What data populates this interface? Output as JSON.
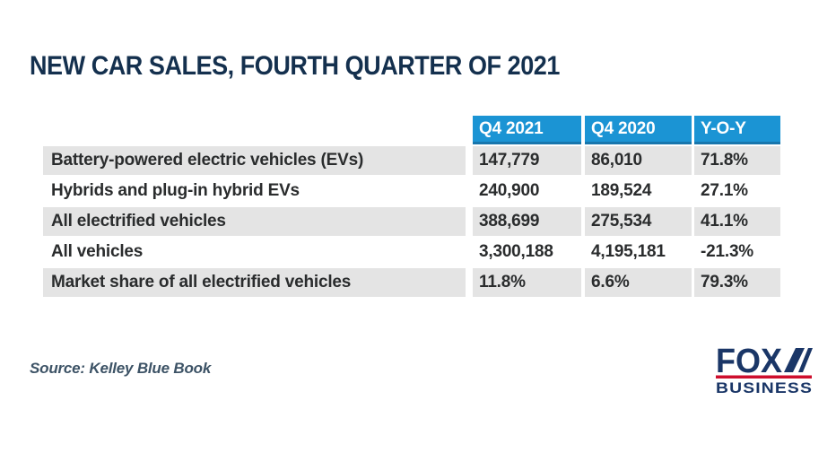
{
  "title": "NEW CAR SALES, FOURTH QUARTER OF 2021",
  "table": {
    "columns": [
      "Q4 2021",
      "Q4 2020",
      "Y-O-Y"
    ],
    "rows": [
      {
        "label": "Battery-powered electric vehicles (EVs)",
        "values": [
          "147,779",
          "86,010",
          "71.8%"
        ]
      },
      {
        "label": "Hybrids and plug-in hybrid EVs",
        "values": [
          "240,900",
          "189,524",
          "27.1%"
        ]
      },
      {
        "label": "All electrified vehicles",
        "values": [
          "388,699",
          "275,534",
          "41.1%"
        ]
      },
      {
        "label": "All vehicles",
        "values": [
          "3,300,188",
          "4,195,181",
          "-21.3%"
        ]
      },
      {
        "label": "Market share of all electrified vehicles",
        "values": [
          "11.8%",
          "6.6%",
          "79.3%"
        ]
      }
    ]
  },
  "source": "Source: Kelley Blue Book",
  "logo": {
    "brand": "FOX",
    "sub": "BUSINESS"
  },
  "colors": {
    "header_blue": "#1b94d4",
    "header_blue_dark": "#1776ad",
    "row_gray": "#e4e4e4",
    "title_navy": "#14304e",
    "cell_text": "#2a2c2d",
    "source_slate": "#3d5366",
    "fox_navy": "#1a3667",
    "fox_red": "#ce0e2d"
  },
  "chart_data": {
    "type": "table",
    "title": "NEW CAR SALES, FOURTH QUARTER OF 2021",
    "columns": [
      "Q4 2021",
      "Q4 2020",
      "Y-O-Y"
    ],
    "rows": [
      {
        "label": "Battery-powered electric vehicles (EVs)",
        "q4_2021": 147779,
        "q4_2020": 86010,
        "yoy_pct": 71.8
      },
      {
        "label": "Hybrids and plug-in hybrid EVs",
        "q4_2021": 240900,
        "q4_2020": 189524,
        "yoy_pct": 27.1
      },
      {
        "label": "All electrified vehicles",
        "q4_2021": 388699,
        "q4_2020": 275534,
        "yoy_pct": 41.1
      },
      {
        "label": "All vehicles",
        "q4_2021": 3300188,
        "q4_2020": 4195181,
        "yoy_pct": -21.3
      },
      {
        "label": "Market share of all electrified vehicles",
        "q4_2021": "11.8%",
        "q4_2020": "6.6%",
        "yoy_pct": 79.3
      }
    ],
    "source": "Kelley Blue Book",
    "layout_hints": {
      "shaded_rows": [
        0,
        2,
        4
      ],
      "header_style": "blue-band",
      "value_alignment": "left"
    }
  }
}
